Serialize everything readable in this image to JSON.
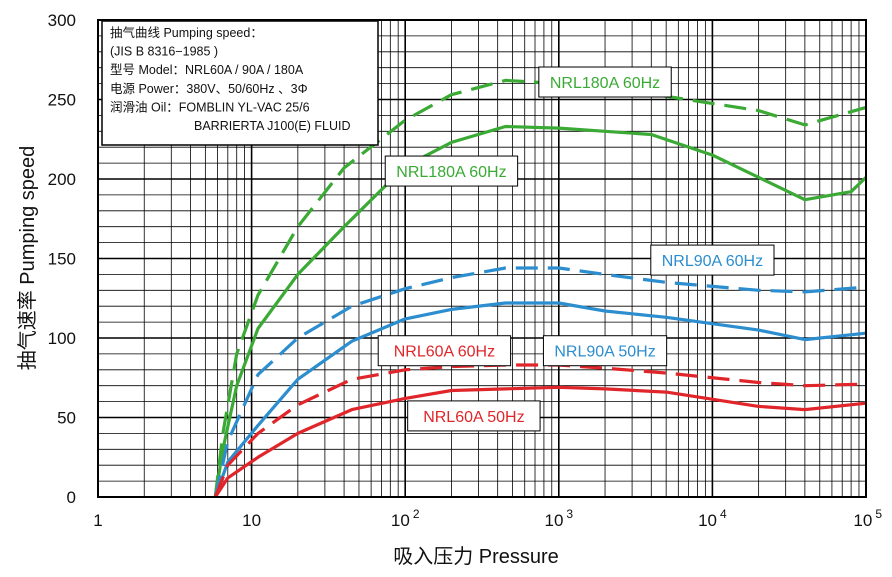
{
  "chart_data": {
    "type": "line",
    "xlabel": "吸入压力 Pressure",
    "ylabel": "抽气速率 Pumping speed",
    "xscale": "log",
    "xlim": [
      1,
      100000
    ],
    "ylim": [
      0,
      300
    ],
    "grid": true,
    "x_tick_labels": [
      {
        "base": "1",
        "exp": ""
      },
      {
        "base": "10",
        "exp": ""
      },
      {
        "base": "10",
        "exp": "2"
      },
      {
        "base": "10",
        "exp": "3"
      },
      {
        "base": "10",
        "exp": "4"
      },
      {
        "base": "10",
        "exp": "5"
      }
    ],
    "y_tick_labels": [
      "0",
      "50",
      "100",
      "150",
      "200",
      "250",
      "300"
    ],
    "info_box": [
      "抽气曲线 Pumping speed：",
      "(JIS B 8316−1985 )",
      "型号 Model：NRL60A / 90A / 180A",
      "电源 Power：380V、50/60Hz 、3Φ",
      "润滑油 Oil：FOMBLIN YL-VAC 25/6",
      "BARRIERTA J100(E) FLUID"
    ],
    "series": [
      {
        "name": "NRL180A 60Hz",
        "color": "#3aaa35",
        "dash": true,
        "x": [
          5.8,
          6.5,
          8,
          11,
          20,
          40,
          100,
          200,
          450,
          1000,
          2000,
          5000,
          20000,
          40000,
          100000
        ],
        "y": [
          0,
          40,
          90,
          127,
          170,
          207,
          237,
          253,
          262,
          260,
          258,
          252,
          243,
          234,
          245
        ]
      },
      {
        "name": "NRL180A 60Hz",
        "color": "#3aaa35",
        "dash": false,
        "x": [
          5.8,
          6.5,
          8,
          11,
          20,
          40,
          100,
          200,
          450,
          1000,
          2000,
          4000,
          10000,
          40000,
          80000,
          100000
        ],
        "y": [
          0,
          30,
          70,
          106,
          140,
          170,
          208,
          223,
          233,
          232,
          230,
          228,
          215,
          187,
          192,
          201
        ]
      },
      {
        "name": "NRL90A 60Hz",
        "color": "#2c8dcf",
        "dash": true,
        "x": [
          5.8,
          7,
          11,
          20,
          45,
          100,
          200,
          450,
          1000,
          2000,
          5000,
          20000,
          40000,
          100000
        ],
        "y": [
          0,
          35,
          77,
          100,
          120,
          131,
          138,
          144,
          144,
          140,
          135,
          130,
          129,
          132
        ]
      },
      {
        "name": "NRL90A 50Hz",
        "color": "#2c8dcf",
        "dash": false,
        "x": [
          5.8,
          7,
          11,
          20,
          45,
          100,
          200,
          450,
          1000,
          2000,
          5000,
          20000,
          40000,
          100000
        ],
        "y": [
          0,
          22,
          45,
          74,
          98,
          112,
          118,
          122,
          122,
          117,
          113,
          105,
          99,
          103
        ]
      },
      {
        "name": "NRL60A 60Hz",
        "color": "#e0262a",
        "dash": true,
        "x": [
          5.8,
          7,
          11,
          20,
          45,
          100,
          200,
          450,
          1000,
          2000,
          5000,
          20000,
          40000,
          100000
        ],
        "y": [
          0,
          20,
          40,
          58,
          74,
          80,
          82,
          83,
          83,
          81,
          78,
          72,
          70,
          71
        ]
      },
      {
        "name": "NRL60A 50Hz",
        "color": "#e0262a",
        "dash": false,
        "x": [
          5.8,
          7,
          11,
          20,
          45,
          100,
          200,
          450,
          1000,
          2000,
          5000,
          20000,
          40000,
          100000
        ],
        "y": [
          0,
          12,
          25,
          40,
          55,
          62,
          67,
          68,
          69,
          68,
          66,
          57,
          55,
          59
        ]
      }
    ],
    "labels": [
      {
        "text": "NRL180A 60Hz",
        "color": "#3aaa35",
        "x": 2000,
        "y": 261
      },
      {
        "text": "NRL180A 60Hz",
        "color": "#3aaa35",
        "x": 200,
        "y": 205
      },
      {
        "text": "NRL90A 60Hz",
        "color": "#2c8dcf",
        "x": 10000,
        "y": 149
      },
      {
        "text": "NRL90A 50Hz",
        "color": "#2c8dcf",
        "x": 2000,
        "y": 92
      },
      {
        "text": "NRL60A  60Hz",
        "color": "#e0262a",
        "x": 180,
        "y": 92
      },
      {
        "text": "NRL60A  50Hz",
        "color": "#e0262a",
        "x": 280,
        "y": 51
      }
    ]
  }
}
